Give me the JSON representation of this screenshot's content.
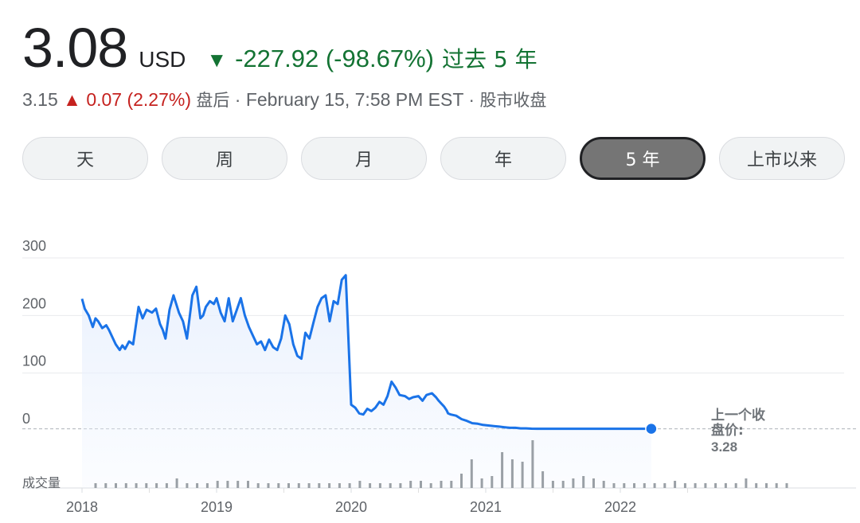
{
  "quote": {
    "price": "3.08",
    "currency": "USD",
    "change_arrow": "▼",
    "change": "-227.92 (-98.67%)",
    "period": "过去 5 年",
    "change_color": "#137333"
  },
  "after_hours": {
    "price": "3.15",
    "arrow": "▲",
    "change": "0.07 (2.27%)",
    "label": "盘后",
    "timestamp": "· February 15, 7:58 PM EST ·",
    "market_status": "股市收盘",
    "change_color": "#c5221f"
  },
  "range_tabs": [
    {
      "label": "天",
      "active": false
    },
    {
      "label": "周",
      "active": false
    },
    {
      "label": "月",
      "active": false
    },
    {
      "label": "年",
      "active": false
    },
    {
      "label": "5 年",
      "active": true
    },
    {
      "label": "上市以来",
      "active": false
    }
  ],
  "chart_data": {
    "type": "line",
    "series": [
      {
        "color": "#1a73e8",
        "x": [
          2018.0,
          2018.02,
          2018.05,
          2018.08,
          2018.1,
          2018.12,
          2018.15,
          2018.18,
          2018.2,
          2018.22,
          2018.25,
          2018.28,
          2018.3,
          2018.32,
          2018.35,
          2018.38,
          2018.42,
          2018.45,
          2018.48,
          2018.52,
          2018.55,
          2018.58,
          2018.6,
          2018.62,
          2018.65,
          2018.68,
          2018.72,
          2018.75,
          2018.78,
          2018.82,
          2018.85,
          2018.88,
          2018.9,
          2018.92,
          2018.95,
          2018.98,
          2019.0,
          2019.03,
          2019.06,
          2019.09,
          2019.12,
          2019.15,
          2019.18,
          2019.21,
          2019.24,
          2019.27,
          2019.3,
          2019.33,
          2019.36,
          2019.39,
          2019.42,
          2019.45,
          2019.48,
          2019.51,
          2019.54,
          2019.57,
          2019.6,
          2019.63,
          2019.66,
          2019.69,
          2019.72,
          2019.75,
          2019.78,
          2019.81,
          2019.84,
          2019.87,
          2019.9,
          2019.93,
          2019.96,
          2020.0,
          2020.03,
          2020.06,
          2020.09,
          2020.12,
          2020.15,
          2020.18,
          2020.21,
          2020.24,
          2020.27,
          2020.3,
          2020.33,
          2020.36,
          2020.4,
          2020.43,
          2020.46,
          2020.5,
          2020.53,
          2020.56,
          2020.6,
          2020.63,
          2020.65,
          2020.67,
          2020.69,
          2020.71,
          2020.72,
          2020.74,
          2020.78,
          2020.82,
          2020.86,
          2020.9,
          2020.94,
          2020.98,
          2021.02,
          2021.06,
          2021.1,
          2021.14,
          2021.18,
          2021.22,
          2021.26,
          2021.3,
          2021.34,
          2021.38,
          2021.42,
          2021.48,
          2021.54,
          2021.6,
          2021.66,
          2021.72,
          2021.78,
          2021.84,
          2021.9,
          2021.96,
          2022.02,
          2022.08,
          2022.14,
          2022.2,
          2022.23
        ],
        "y": [
          229,
          212,
          200,
          180,
          195,
          190,
          178,
          183,
          175,
          165,
          150,
          140,
          148,
          142,
          155,
          150,
          215,
          195,
          210,
          205,
          212,
          185,
          175,
          160,
          210,
          235,
          205,
          190,
          160,
          235,
          250,
          195,
          200,
          215,
          225,
          220,
          230,
          205,
          190,
          230,
          190,
          210,
          230,
          200,
          180,
          165,
          150,
          155,
          140,
          158,
          145,
          140,
          160,
          200,
          185,
          150,
          130,
          125,
          170,
          160,
          188,
          215,
          230,
          235,
          190,
          225,
          220,
          262,
          270,
          45,
          40,
          30,
          28,
          38,
          34,
          40,
          50,
          45,
          60,
          85,
          75,
          62,
          60,
          55,
          58,
          60,
          52,
          62,
          65,
          58,
          52,
          47,
          42,
          35,
          30,
          28,
          26,
          20,
          17,
          13,
          12,
          10,
          9,
          8,
          7,
          6,
          5,
          5,
          4,
          4,
          3.5,
          3.28,
          3.28,
          3.28,
          3.28,
          3.28,
          3.28,
          3.28,
          3.28,
          3.28,
          3.28,
          3.28,
          3.28,
          3.28,
          3.28,
          3.28,
          3.28
        ]
      }
    ],
    "previous_close": 3.28,
    "previous_close_label": "上一个收盘价:",
    "previous_close_value": "3.28",
    "y_ticks": [
      "300",
      "200",
      "100",
      "0"
    ],
    "ylim": [
      0,
      300
    ],
    "x_ticks": [
      "2018",
      "2019",
      "2020",
      "2021",
      "2022"
    ],
    "xlim": [
      2017.95,
      2023.0
    ],
    "volume_label": "成交量",
    "volume": [
      2,
      2,
      2,
      2,
      2,
      2,
      2,
      2,
      4,
      2,
      2,
      2,
      3,
      3,
      3,
      3,
      2,
      2,
      2,
      2,
      2,
      2,
      2,
      2,
      2,
      2,
      3,
      2,
      2,
      2,
      2,
      3,
      3,
      2,
      3,
      3,
      6,
      12,
      4,
      5,
      15,
      12,
      11,
      20,
      7,
      3,
      3,
      4,
      5,
      4,
      3,
      2,
      2,
      2,
      2,
      2,
      2,
      3,
      2,
      2,
      2,
      2,
      2,
      2,
      4,
      2,
      2,
      2,
      2
    ],
    "grid": true,
    "fill": "#e8f0fe"
  }
}
